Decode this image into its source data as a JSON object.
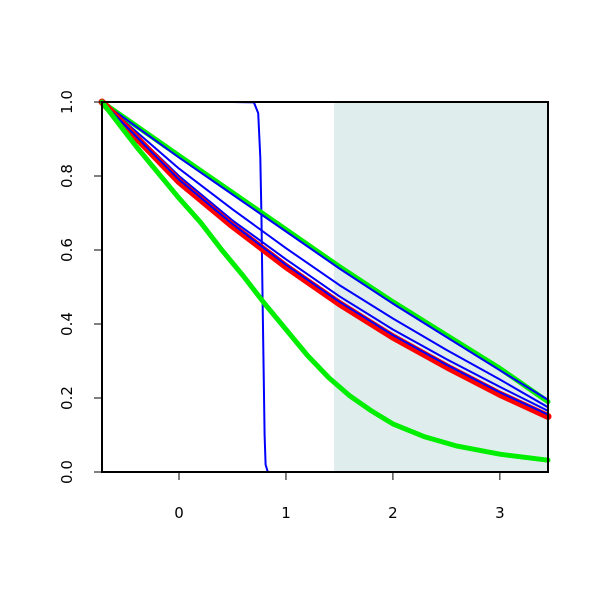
{
  "chart_data": {
    "type": "line",
    "title": "",
    "xlabel": "",
    "ylabel": "",
    "xlim": [
      -0.72,
      3.45
    ],
    "ylim": [
      0,
      1
    ],
    "x_ticks": [
      0,
      1,
      2,
      3
    ],
    "x_tick_labels": [
      "0",
      "1",
      "2",
      "3"
    ],
    "y_ticks": [
      0,
      0.2,
      0.4,
      0.6,
      0.8,
      1
    ],
    "y_tick_labels": [
      "0.0",
      "0.2",
      "0.4",
      "0.6",
      "0.8",
      "1.0"
    ],
    "grid": false,
    "legend": "none",
    "shaded_region": {
      "x_start": 1.45,
      "x_end": 3.45,
      "color": "#e0eded"
    },
    "series": [
      {
        "color": "#0000ff",
        "width": 2,
        "points": [
          [
            -0.72,
            1.0
          ],
          [
            0.5,
            1.0
          ],
          [
            0.7,
            0.999
          ],
          [
            0.74,
            0.97
          ],
          [
            0.76,
            0.85
          ],
          [
            0.77,
            0.7
          ],
          [
            0.78,
            0.5
          ],
          [
            0.79,
            0.3
          ],
          [
            0.8,
            0.1
          ],
          [
            0.81,
            0.02
          ],
          [
            0.83,
            0.0
          ],
          [
            3.45,
            0.0
          ]
        ]
      },
      {
        "color": "#00ee00",
        "width": 5,
        "points": [
          [
            -0.72,
            1.0
          ],
          [
            0.0,
            0.855
          ],
          [
            0.5,
            0.755
          ],
          [
            1.0,
            0.655
          ],
          [
            1.5,
            0.555
          ],
          [
            2.0,
            0.46
          ],
          [
            2.5,
            0.37
          ],
          [
            3.0,
            0.28
          ],
          [
            3.45,
            0.19
          ]
        ]
      },
      {
        "color": "#0000ff",
        "width": 2,
        "points": [
          [
            -0.72,
            1.0
          ],
          [
            0.0,
            0.85
          ],
          [
            0.5,
            0.75
          ],
          [
            1.0,
            0.65
          ],
          [
            1.5,
            0.55
          ],
          [
            2.0,
            0.455
          ],
          [
            2.5,
            0.365
          ],
          [
            3.0,
            0.275
          ],
          [
            3.45,
            0.195
          ]
        ]
      },
      {
        "color": "#0000ff",
        "width": 2,
        "points": [
          [
            -0.72,
            1.0
          ],
          [
            0.0,
            0.82
          ],
          [
            0.5,
            0.71
          ],
          [
            1.0,
            0.605
          ],
          [
            1.5,
            0.505
          ],
          [
            2.0,
            0.415
          ],
          [
            2.5,
            0.33
          ],
          [
            3.0,
            0.25
          ],
          [
            3.45,
            0.175
          ]
        ]
      },
      {
        "color": "#0000ff",
        "width": 2,
        "points": [
          [
            -0.72,
            1.0
          ],
          [
            0.0,
            0.8
          ],
          [
            0.5,
            0.68
          ],
          [
            1.0,
            0.575
          ],
          [
            1.5,
            0.475
          ],
          [
            2.0,
            0.385
          ],
          [
            2.5,
            0.305
          ],
          [
            3.0,
            0.23
          ],
          [
            3.45,
            0.165
          ]
        ]
      },
      {
        "color": "#ff0000",
        "width": 7,
        "points": [
          [
            -0.72,
            1.0
          ],
          [
            0.0,
            0.785
          ],
          [
            0.5,
            0.665
          ],
          [
            1.0,
            0.555
          ],
          [
            1.5,
            0.455
          ],
          [
            2.0,
            0.365
          ],
          [
            2.5,
            0.285
          ],
          [
            3.0,
            0.21
          ],
          [
            3.45,
            0.15
          ]
        ]
      },
      {
        "color": "#0000ff",
        "width": 2,
        "points": [
          [
            -0.72,
            1.0
          ],
          [
            0.0,
            0.79
          ],
          [
            0.5,
            0.67
          ],
          [
            1.0,
            0.56
          ],
          [
            1.5,
            0.46
          ],
          [
            2.0,
            0.37
          ],
          [
            2.5,
            0.29
          ],
          [
            3.0,
            0.215
          ],
          [
            3.45,
            0.155
          ]
        ]
      },
      {
        "color": "#00ee00",
        "width": 5,
        "points": [
          [
            -0.72,
            1.0
          ],
          [
            -0.4,
            0.88
          ],
          [
            -0.2,
            0.81
          ],
          [
            0.0,
            0.74
          ],
          [
            0.2,
            0.675
          ],
          [
            0.4,
            0.6
          ],
          [
            0.6,
            0.53
          ],
          [
            0.8,
            0.455
          ],
          [
            1.0,
            0.385
          ],
          [
            1.2,
            0.315
          ],
          [
            1.4,
            0.255
          ],
          [
            1.6,
            0.205
          ],
          [
            1.8,
            0.165
          ],
          [
            2.0,
            0.13
          ],
          [
            2.3,
            0.095
          ],
          [
            2.6,
            0.07
          ],
          [
            3.0,
            0.048
          ],
          [
            3.45,
            0.032
          ]
        ]
      }
    ]
  }
}
